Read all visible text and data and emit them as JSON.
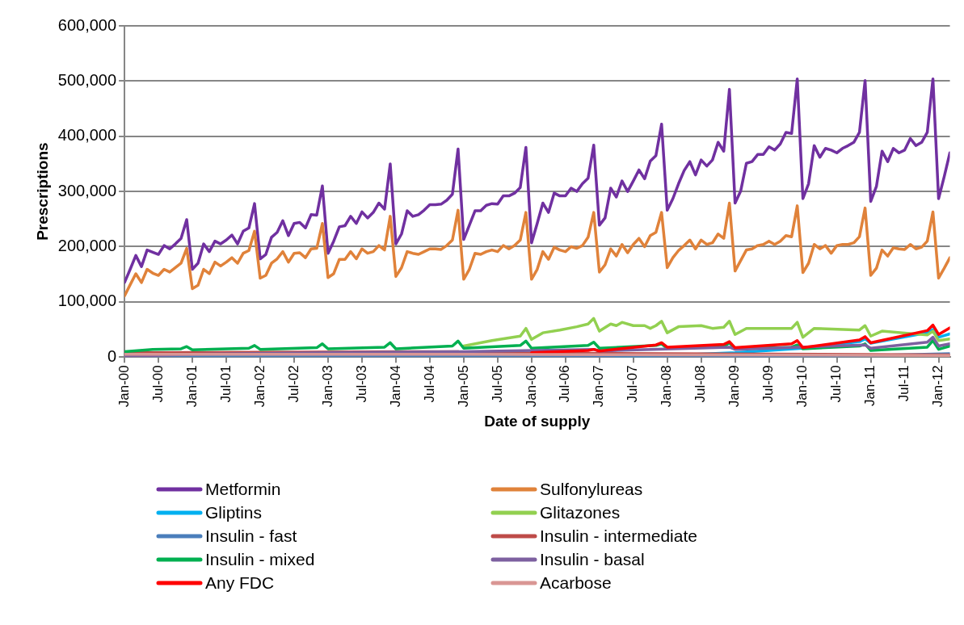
{
  "chart_data": {
    "type": "line",
    "xlabel": "Date of supply",
    "ylabel": "Prescriptions",
    "grid": "y",
    "legend": "bottom",
    "xlim": [
      "2000-01",
      "2012-03"
    ],
    "xticks": [
      {
        "value": "2000-01",
        "label": "Jan-00"
      },
      {
        "value": "2000-07",
        "label": "Jul-00"
      },
      {
        "value": "2001-01",
        "label": "Jan-01"
      },
      {
        "value": "2001-07",
        "label": "Jul-01"
      },
      {
        "value": "2002-01",
        "label": "Jan-02"
      },
      {
        "value": "2002-07",
        "label": "Jul-02"
      },
      {
        "value": "2003-01",
        "label": "Jan-03"
      },
      {
        "value": "2003-07",
        "label": "Jul-03"
      },
      {
        "value": "2004-01",
        "label": "Jan-04"
      },
      {
        "value": "2004-07",
        "label": "Jul-04"
      },
      {
        "value": "2005-01",
        "label": "Jan-05"
      },
      {
        "value": "2005-07",
        "label": "Jul-05"
      },
      {
        "value": "2006-01",
        "label": "Jan-06"
      },
      {
        "value": "2006-07",
        "label": "Jul-06"
      },
      {
        "value": "2007-01",
        "label": "Jan-07"
      },
      {
        "value": "2007-07",
        "label": "Jul-07"
      },
      {
        "value": "2008-01",
        "label": "Jan-08"
      },
      {
        "value": "2008-07",
        "label": "Jul-08"
      },
      {
        "value": "2009-01",
        "label": "Jan-09"
      },
      {
        "value": "2009-07",
        "label": "Jul-09"
      },
      {
        "value": "2010-01",
        "label": "Jan-10"
      },
      {
        "value": "2010-07",
        "label": "Jul-10"
      },
      {
        "value": "2011-01",
        "label": "Jan-11"
      },
      {
        "value": "2011-07",
        "label": "Jul-11"
      },
      {
        "value": "2012-01",
        "label": "Jan-12"
      }
    ],
    "ylim": [
      0,
      600000
    ],
    "yticks": [
      0,
      {
        "value": 100000,
        "label": "100,000"
      },
      {
        "value": 200000,
        "label": "200,000"
      },
      {
        "value": 300000,
        "label": "300,000"
      },
      {
        "value": 400000,
        "label": "400,000"
      },
      {
        "value": 500000,
        "label": "500,000"
      },
      {
        "value": 600000,
        "label": "600,000"
      }
    ],
    "x": [
      "2000-01",
      "2000-02",
      "2000-03",
      "2000-04",
      "2000-05",
      "2000-06",
      "2000-07",
      "2000-08",
      "2000-09",
      "2000-10",
      "2000-11",
      "2000-12",
      "2001-01",
      "2001-02",
      "2001-03",
      "2001-04",
      "2001-05",
      "2001-06",
      "2001-07",
      "2001-08",
      "2001-09",
      "2001-10",
      "2001-11",
      "2001-12",
      "2002-01",
      "2002-02",
      "2002-03",
      "2002-04",
      "2002-05",
      "2002-06",
      "2002-07",
      "2002-08",
      "2002-09",
      "2002-10",
      "2002-11",
      "2002-12",
      "2003-01",
      "2003-02",
      "2003-03",
      "2003-04",
      "2003-05",
      "2003-06",
      "2003-07",
      "2003-08",
      "2003-09",
      "2003-10",
      "2003-11",
      "2003-12",
      "2004-01",
      "2004-02",
      "2004-03",
      "2004-04",
      "2004-05",
      "2004-06",
      "2004-07",
      "2004-08",
      "2004-09",
      "2004-10",
      "2004-11",
      "2004-12",
      "2005-01",
      "2005-02",
      "2005-03",
      "2005-04",
      "2005-05",
      "2005-06",
      "2005-07",
      "2005-08",
      "2005-09",
      "2005-10",
      "2005-11",
      "2005-12",
      "2006-01",
      "2006-02",
      "2006-03",
      "2006-04",
      "2006-05",
      "2006-06",
      "2006-07",
      "2006-08",
      "2006-09",
      "2006-10",
      "2006-11",
      "2006-12",
      "2007-01",
      "2007-02",
      "2007-03",
      "2007-04",
      "2007-05",
      "2007-06",
      "2007-07",
      "2007-08",
      "2007-09",
      "2007-10",
      "2007-11",
      "2007-12",
      "2008-01",
      "2008-02",
      "2008-03",
      "2008-04",
      "2008-05",
      "2008-06",
      "2008-07",
      "2008-08",
      "2008-09",
      "2008-10",
      "2008-11",
      "2008-12",
      "2009-01",
      "2009-02",
      "2009-03",
      "2009-04",
      "2009-05",
      "2009-06",
      "2009-07",
      "2009-08",
      "2009-09",
      "2009-10",
      "2009-11",
      "2009-12",
      "2010-01",
      "2010-02",
      "2010-03",
      "2010-04",
      "2010-05",
      "2010-06",
      "2010-07",
      "2010-08",
      "2010-09",
      "2010-10",
      "2010-11",
      "2010-12",
      "2011-01",
      "2011-02",
      "2011-03",
      "2011-04",
      "2011-05",
      "2011-06",
      "2011-07",
      "2011-08",
      "2011-09",
      "2011-10",
      "2011-11",
      "2011-12",
      "2012-01",
      "2012-02",
      "2012-03"
    ],
    "series": [
      {
        "name": "Metformin",
        "color": "#7030a0",
        "values": [
          135000,
          159000,
          184000,
          164000,
          194000,
          190000,
          186000,
          202000,
          196000,
          205000,
          215000,
          249000,
          159000,
          170000,
          205000,
          191000,
          210000,
          205000,
          212000,
          221000,
          205000,
          228000,
          234000,
          278000,
          178000,
          186000,
          217000,
          226000,
          247000,
          220000,
          242000,
          244000,
          234000,
          258000,
          257000,
          310000,
          188000,
          210000,
          236000,
          238000,
          255000,
          242000,
          263000,
          252000,
          262000,
          279000,
          268000,
          350000,
          205000,
          223000,
          265000,
          255000,
          258000,
          266000,
          276000,
          276000,
          277000,
          284000,
          295000,
          377000,
          213000,
          239000,
          265000,
          265000,
          275000,
          278000,
          277000,
          292000,
          292000,
          297000,
          307000,
          380000,
          207000,
          242000,
          279000,
          262000,
          297000,
          292000,
          292000,
          306000,
          300000,
          314000,
          324000,
          384000,
          239000,
          252000,
          306000,
          290000,
          319000,
          300000,
          319000,
          339000,
          323000,
          355000,
          365000,
          422000,
          266000,
          287000,
          314000,
          338000,
          354000,
          330000,
          357000,
          346000,
          357000,
          389000,
          373000,
          485000,
          279000,
          301000,
          351000,
          354000,
          367000,
          367000,
          381000,
          375000,
          386000,
          407000,
          405000,
          504000,
          287000,
          314000,
          383000,
          362000,
          378000,
          375000,
          370000,
          378000,
          383000,
          389000,
          407000,
          501000,
          282000,
          309000,
          373000,
          354000,
          378000,
          370000,
          375000,
          396000,
          383000,
          389000,
          407000,
          504000,
          287000,
          327000,
          370000
        ]
      },
      {
        "name": "Sulfonylureas",
        "color": "#e0823a",
        "values": [
          111000,
          131000,
          151000,
          135000,
          159000,
          152000,
          148000,
          159000,
          154000,
          162000,
          170000,
          197000,
          124000,
          130000,
          159000,
          151000,
          172000,
          165000,
          172000,
          180000,
          170000,
          188000,
          193000,
          228000,
          143000,
          148000,
          170000,
          178000,
          191000,
          172000,
          188000,
          189000,
          180000,
          196000,
          197000,
          242000,
          144000,
          151000,
          177000,
          177000,
          191000,
          178000,
          196000,
          188000,
          191000,
          202000,
          194000,
          255000,
          146000,
          162000,
          191000,
          188000,
          186000,
          191000,
          196000,
          196000,
          195000,
          202000,
          212000,
          266000,
          141000,
          159000,
          188000,
          186000,
          191000,
          194000,
          191000,
          202000,
          196000,
          202000,
          212000,
          262000,
          141000,
          159000,
          191000,
          177000,
          199000,
          194000,
          191000,
          200000,
          197000,
          202000,
          217000,
          262000,
          154000,
          167000,
          196000,
          183000,
          204000,
          189000,
          204000,
          215000,
          200000,
          220000,
          226000,
          262000,
          162000,
          180000,
          193000,
          202000,
          212000,
          196000,
          212000,
          204000,
          207000,
          223000,
          215000,
          279000,
          156000,
          175000,
          194000,
          196000,
          202000,
          204000,
          210000,
          204000,
          210000,
          220000,
          218000,
          274000,
          153000,
          170000,
          204000,
          196000,
          202000,
          188000,
          202000,
          204000,
          204000,
          207000,
          218000,
          270000,
          148000,
          161000,
          194000,
          183000,
          198000,
          196000,
          195000,
          204000,
          196000,
          199000,
          210000,
          263000,
          143000,
          161000,
          180000
        ]
      },
      {
        "name": "Gliptins",
        "color": "#00b0f0",
        "x": [
          "2007-04",
          "2008-01",
          "2009-01",
          "2010-01",
          "2010-11",
          "2010-12",
          "2011-01",
          "2011-11",
          "2011-12",
          "2012-01",
          "2012-03"
        ],
        "values": [
          0,
          3000,
          8000,
          16000,
          28000,
          33000,
          25000,
          44000,
          50000,
          36000,
          42000
        ]
      },
      {
        "name": "Glitazones",
        "color": "#92d050",
        "x": [
          "2005-01",
          "2005-06",
          "2005-11",
          "2005-12",
          "2006-01",
          "2006-03",
          "2006-06",
          "2006-09",
          "2006-11",
          "2006-12",
          "2007-01",
          "2007-03",
          "2007-04",
          "2007-05",
          "2007-07",
          "2007-09",
          "2007-10",
          "2007-11",
          "2007-12",
          "2008-01",
          "2008-03",
          "2008-07",
          "2008-09",
          "2008-11",
          "2008-12",
          "2009-01",
          "2009-03",
          "2009-11",
          "2009-12",
          "2010-01",
          "2010-03",
          "2010-11",
          "2010-12",
          "2011-01",
          "2011-03",
          "2011-11",
          "2011-12",
          "2012-01",
          "2012-03"
        ],
        "values": [
          20000,
          30000,
          38000,
          52000,
          32000,
          44000,
          49000,
          55000,
          60000,
          70000,
          47000,
          60000,
          57000,
          63000,
          57000,
          57000,
          52000,
          57000,
          65000,
          44000,
          55000,
          57000,
          52000,
          54000,
          65000,
          41000,
          52000,
          52000,
          63000,
          36000,
          52000,
          49000,
          57000,
          38000,
          47000,
          40000,
          47000,
          30000,
          33000
        ]
      },
      {
        "name": "Insulin - fast",
        "color": "#4a7ebb",
        "x": [
          "2000-04",
          "2010-06",
          "2012-03"
        ],
        "values": [
          1000,
          1000,
          6000
        ]
      },
      {
        "name": "Insulin - intermediate",
        "color": "#be4b48",
        "x": [
          "2000-01",
          "2004-12",
          "2005-01",
          "2008-01",
          "2012-03"
        ],
        "values": [
          8000,
          10000,
          8000,
          6000,
          4000
        ]
      },
      {
        "name": "Insulin - mixed",
        "color": "#00b050",
        "x": [
          "2000-01",
          "2000-06",
          "2000-11",
          "2000-12",
          "2001-01",
          "2001-11",
          "2001-12",
          "2002-01",
          "2002-11",
          "2002-12",
          "2003-01",
          "2003-11",
          "2003-12",
          "2004-01",
          "2004-11",
          "2004-12",
          "2005-01",
          "2005-11",
          "2005-12",
          "2006-01",
          "2006-11",
          "2006-12",
          "2007-01",
          "2007-11",
          "2007-12",
          "2008-01",
          "2008-11",
          "2008-12",
          "2009-01",
          "2009-11",
          "2009-12",
          "2010-01",
          "2010-11",
          "2010-12",
          "2011-01",
          "2011-11",
          "2011-12",
          "2012-01",
          "2012-03"
        ],
        "values": [
          10000,
          14000,
          15000,
          19000,
          13000,
          16000,
          21000,
          14000,
          17000,
          24000,
          15000,
          18000,
          26000,
          15000,
          20000,
          29000,
          16000,
          21000,
          29000,
          16000,
          21000,
          27000,
          16000,
          21000,
          24000,
          16000,
          19000,
          26000,
          15000,
          18000,
          22000,
          15000,
          20000,
          24000,
          12000,
          18000,
          30000,
          14000,
          20000
        ]
      },
      {
        "name": "Insulin - basal",
        "color": "#7d60a0",
        "x": [
          "2000-01",
          "2000-06",
          "2001-01",
          "2003-01",
          "2005-01",
          "2006-12",
          "2007-01",
          "2008-12",
          "2009-01",
          "2010-12",
          "2011-01",
          "2011-11",
          "2011-12",
          "2012-01",
          "2012-03"
        ],
        "values": [
          1000,
          3000,
          5000,
          8000,
          10000,
          14000,
          11000,
          18000,
          14000,
          22000,
          16000,
          27000,
          36000,
          20000,
          24000
        ]
      },
      {
        "name": "Any FDC",
        "color": "#ff0000",
        "x": [
          "2006-01",
          "2006-11",
          "2006-12",
          "2007-01",
          "2007-11",
          "2007-12",
          "2008-01",
          "2008-11",
          "2008-12",
          "2009-01",
          "2009-11",
          "2009-12",
          "2010-01",
          "2010-11",
          "2010-12",
          "2011-01",
          "2011-11",
          "2011-12",
          "2012-01",
          "2012-03"
        ],
        "values": [
          8000,
          12000,
          14000,
          11000,
          22000,
          26000,
          18000,
          23000,
          28000,
          17000,
          24000,
          30000,
          17000,
          31000,
          37000,
          26000,
          48000,
          58000,
          41000,
          53000
        ]
      },
      {
        "name": "Acarbose",
        "color": "#d99694",
        "x": [
          "2000-01",
          "2005-01",
          "2012-03"
        ],
        "values": [
          5000,
          5000,
          3000
        ]
      }
    ]
  }
}
